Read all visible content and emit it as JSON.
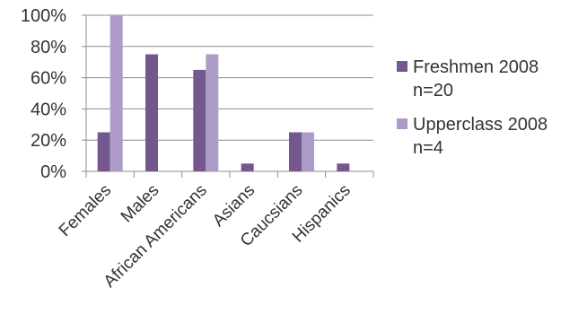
{
  "chart_data": {
    "type": "bar",
    "categories": [
      "Females",
      "Males",
      "African Americans",
      "Asians",
      "Caucsians",
      "Hispanics"
    ],
    "series": [
      {
        "name": "Freshmen 2008\nn=20",
        "values": [
          25,
          75,
          65,
          5,
          25,
          5
        ],
        "color": "#74578f"
      },
      {
        "name": "Upperclass 2008\nn=4",
        "values": [
          100,
          0,
          75,
          0,
          25,
          0
        ],
        "color": "#ad9cc8"
      }
    ],
    "ylim": [
      0,
      100
    ],
    "yticks": [
      "0%",
      "20%",
      "40%",
      "60%",
      "80%",
      "100%"
    ],
    "grid": true,
    "legend_position": "right"
  }
}
